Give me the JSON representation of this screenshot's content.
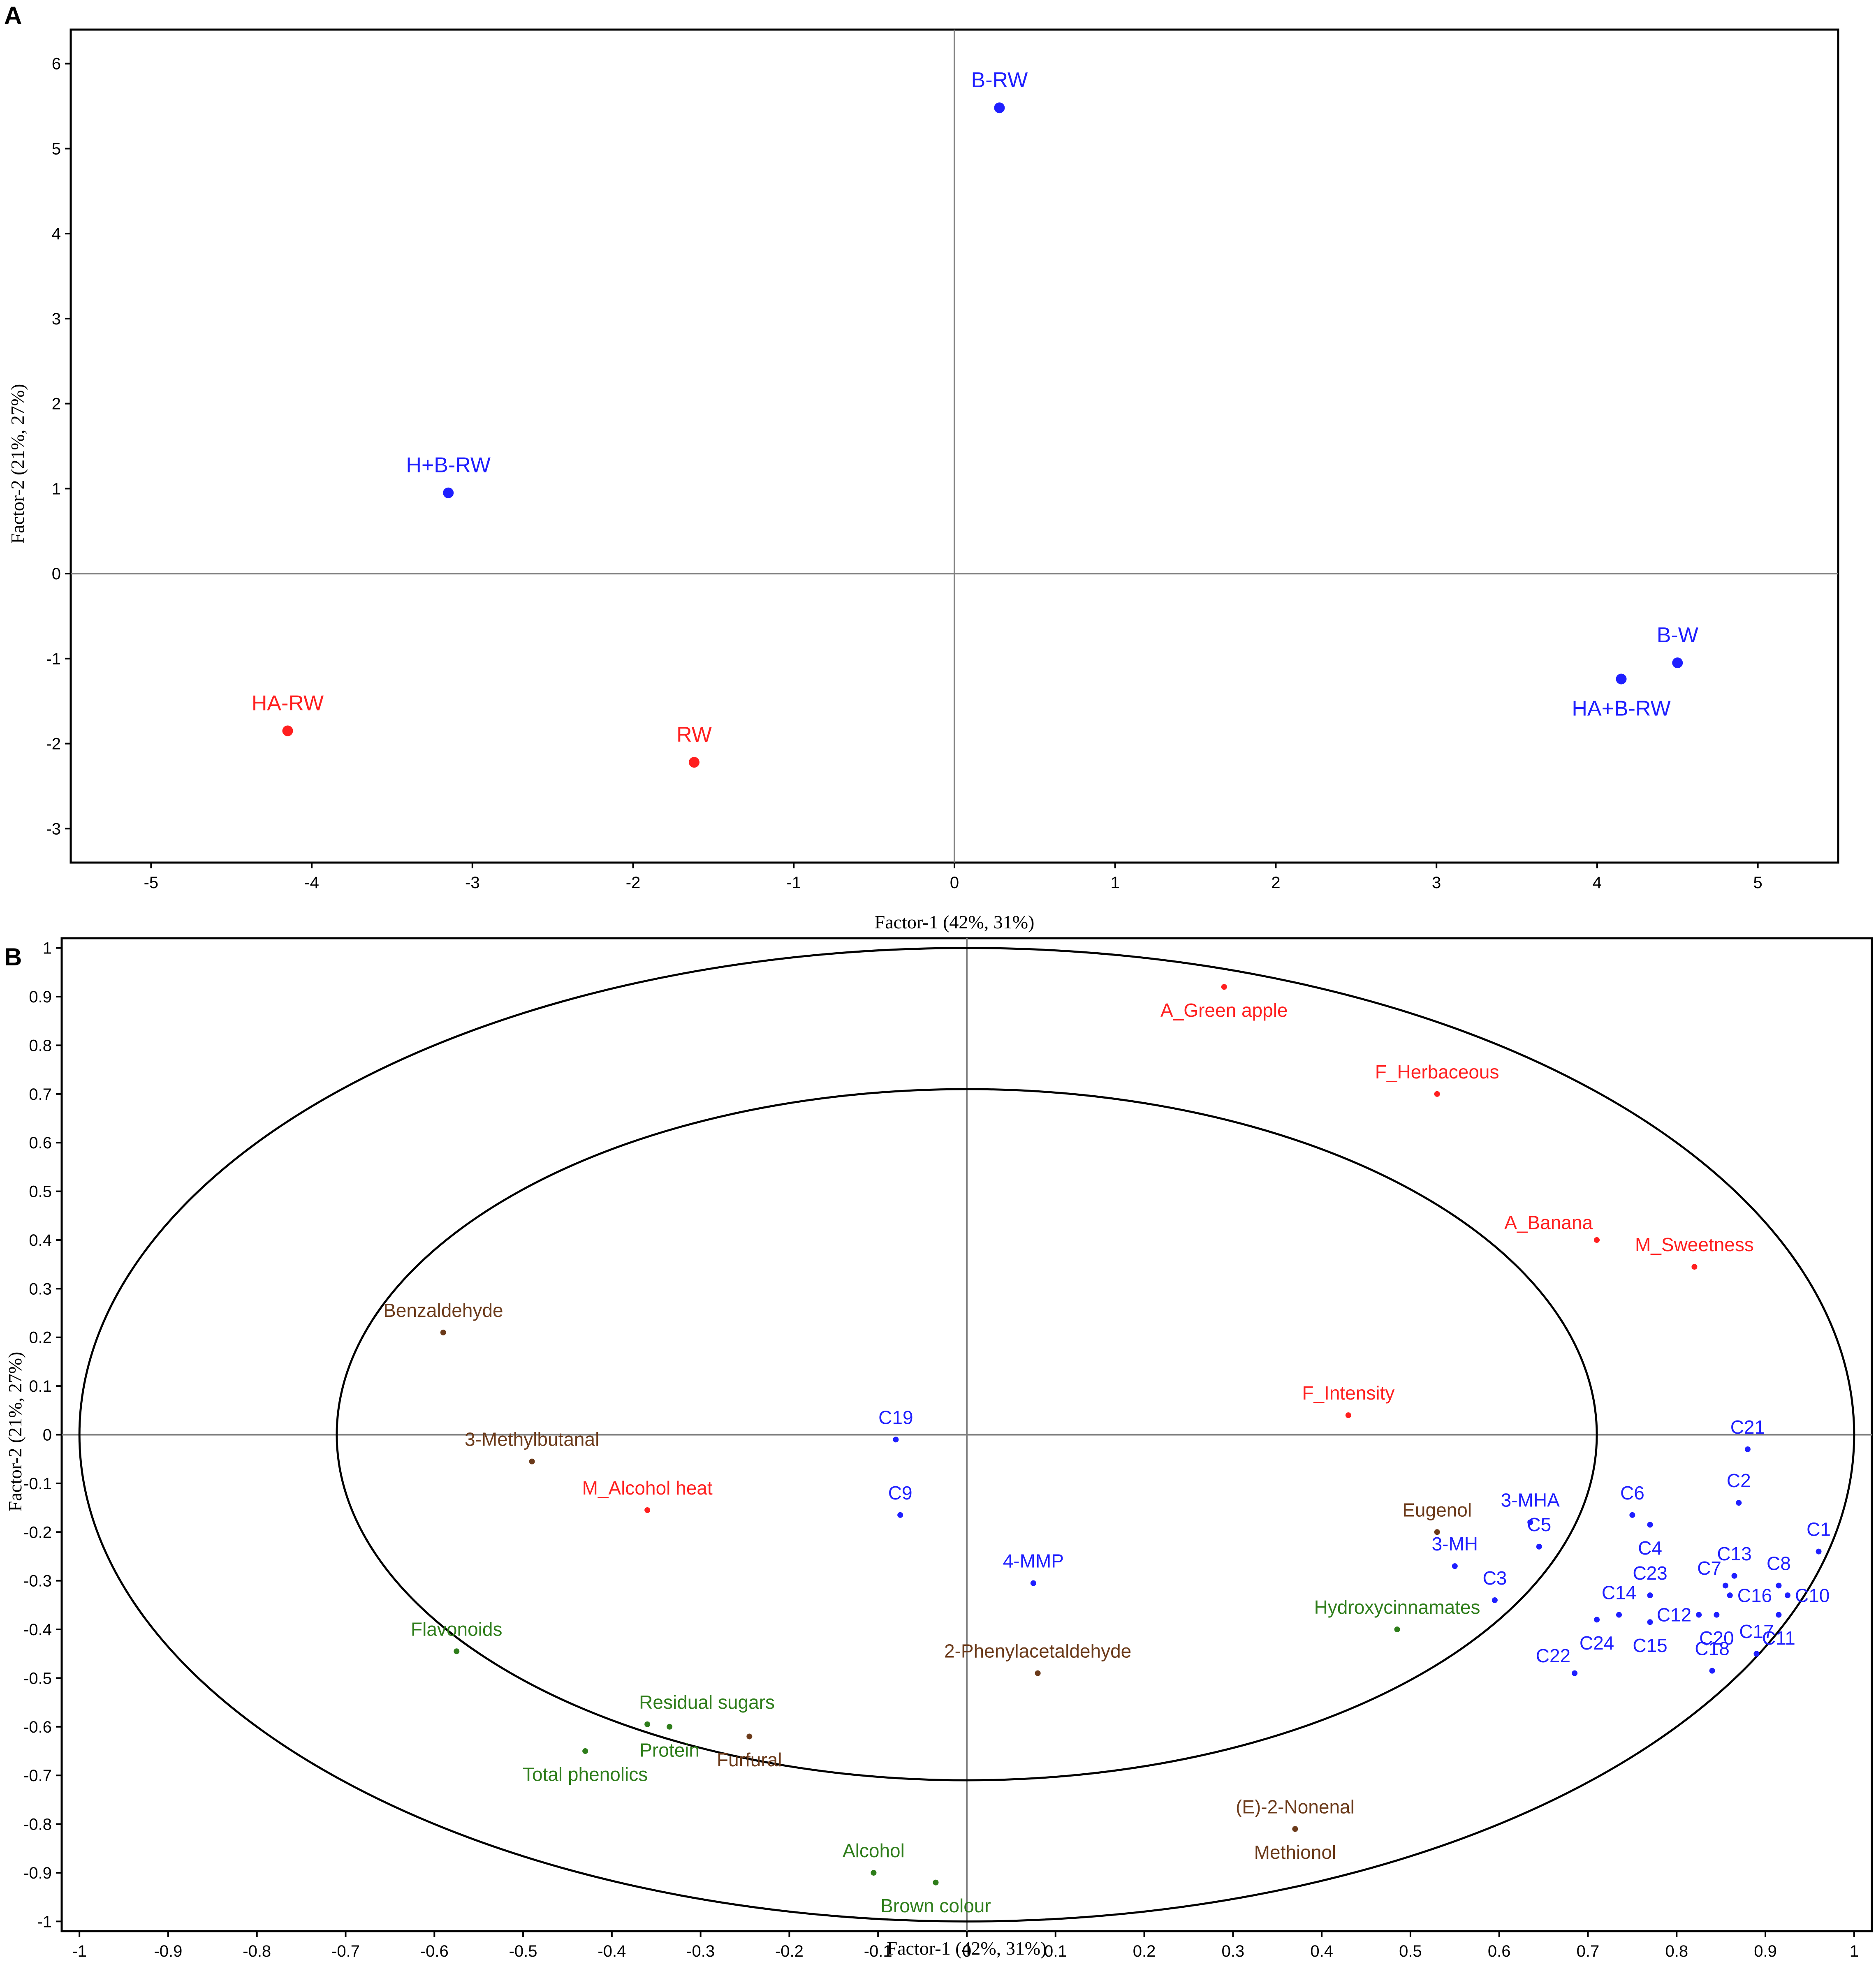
{
  "colors": {
    "blue": "#1f1fff",
    "red": "#ff1f1f",
    "brown": "#6b3a1a",
    "green": "#2e7d1a"
  },
  "chart_data": [
    {
      "panel": "A",
      "type": "scatter",
      "title": "",
      "xlabel": "Factor-1 (42%, 31%)",
      "ylabel": "Factor-2 (21%, 27%)",
      "xlim": [
        -5.5,
        5.5
      ],
      "ylim": [
        -3.4,
        6.4
      ],
      "xticks": [
        -5,
        -4,
        -3,
        -2,
        -1,
        0,
        1,
        2,
        3,
        4,
        5
      ],
      "yticks": [
        -3,
        -2,
        -1,
        0,
        1,
        2,
        3,
        4,
        5,
        6
      ],
      "points": [
        {
          "label": "B-RW",
          "x": 0.28,
          "y": 5.48,
          "color": "blue",
          "label_pos": "above"
        },
        {
          "label": "H+B-RW",
          "x": -3.15,
          "y": 0.95,
          "color": "blue",
          "label_pos": "above"
        },
        {
          "label": "B-W",
          "x": 4.5,
          "y": -1.05,
          "color": "blue",
          "label_pos": "above"
        },
        {
          "label": "HA+B-RW",
          "x": 4.15,
          "y": -1.24,
          "color": "blue",
          "label_pos": "below"
        },
        {
          "label": "HA-RW",
          "x": -4.15,
          "y": -1.85,
          "color": "red",
          "label_pos": "above"
        },
        {
          "label": "RW",
          "x": -1.62,
          "y": -2.22,
          "color": "red",
          "label_pos": "above"
        }
      ]
    },
    {
      "panel": "B",
      "type": "scatter",
      "title": "",
      "xlabel": "Factor-1 (42%, 31%)",
      "ylabel": "Factor-2 (21%, 27%)",
      "xlim": [
        -1.02,
        1.02
      ],
      "ylim": [
        -1.02,
        1.02
      ],
      "xticks": [
        "-1",
        "-0.9",
        "-0.8",
        "-0.7",
        "-0.6",
        "-0.5",
        "-0.4",
        "-0.3",
        "-0.2",
        "-0.1",
        "0",
        "0.1",
        "0.2",
        "0.3",
        "0.4",
        "0.5",
        "0.6",
        "0.7",
        "0.8",
        "0.9",
        "1"
      ],
      "yticks": [
        "-1",
        "-0.9",
        "-0.8",
        "-0.7",
        "-0.6",
        "-0.5",
        "-0.4",
        "-0.3",
        "-0.2",
        "-0.1",
        "0",
        "0.1",
        "0.2",
        "0.3",
        "0.4",
        "0.5",
        "0.6",
        "0.7",
        "0.8",
        "0.9",
        "1"
      ],
      "circles": [
        1.0,
        0.71
      ],
      "points": [
        {
          "label": "A_Green apple",
          "x": 0.29,
          "y": 0.92,
          "color": "red",
          "label_pos": "below"
        },
        {
          "label": "F_Herbaceous",
          "x": 0.53,
          "y": 0.7,
          "color": "red",
          "label_pos": "above"
        },
        {
          "label": "A_Banana",
          "x": 0.71,
          "y": 0.4,
          "color": "red",
          "label_pos": "above-left"
        },
        {
          "label": "M_Sweetness",
          "x": 0.82,
          "y": 0.345,
          "color": "red",
          "label_pos": "above"
        },
        {
          "label": "F_Intensity",
          "x": 0.43,
          "y": 0.04,
          "color": "red",
          "label_pos": "above"
        },
        {
          "label": "M_Alcohol heat",
          "x": -0.36,
          "y": -0.155,
          "color": "red",
          "label_pos": "above"
        },
        {
          "label": "Benzaldehyde",
          "x": -0.59,
          "y": 0.21,
          "color": "brown",
          "label_pos": "above"
        },
        {
          "label": "3-Methylbutanal",
          "x": -0.49,
          "y": -0.055,
          "color": "brown",
          "label_pos": "above"
        },
        {
          "label": "Eugenol",
          "x": 0.53,
          "y": -0.2,
          "color": "brown",
          "label_pos": "above"
        },
        {
          "label": "2-Phenylacetaldehyde",
          "x": 0.08,
          "y": -0.49,
          "color": "brown",
          "label_pos": "above"
        },
        {
          "label": "Furfural",
          "x": -0.245,
          "y": -0.62,
          "color": "brown",
          "label_pos": "below"
        },
        {
          "label": "(E)-2-Nonenal",
          "x": 0.37,
          "y": -0.81,
          "color": "brown",
          "label_pos": "above"
        },
        {
          "label": "Methionol",
          "x": 0.37,
          "y": -0.81,
          "color": "brown",
          "label_pos": "below"
        },
        {
          "label": "Hydroxycinnamates",
          "x": 0.485,
          "y": -0.4,
          "color": "green",
          "label_pos": "above"
        },
        {
          "label": "Flavonoids",
          "x": -0.575,
          "y": -0.445,
          "color": "green",
          "label_pos": "above"
        },
        {
          "label": "Residual sugars",
          "x": -0.36,
          "y": -0.595,
          "color": "green",
          "label_pos": "above-right"
        },
        {
          "label": "Protein",
          "x": -0.335,
          "y": -0.6,
          "color": "green",
          "label_pos": "below"
        },
        {
          "label": "Total phenolics",
          "x": -0.43,
          "y": -0.65,
          "color": "green",
          "label_pos": "below"
        },
        {
          "label": "Alcohol",
          "x": -0.105,
          "y": -0.9,
          "color": "green",
          "label_pos": "above"
        },
        {
          "label": "Brown colour",
          "x": -0.035,
          "y": -0.92,
          "color": "green",
          "label_pos": "below"
        },
        {
          "label": "C19",
          "x": -0.08,
          "y": -0.01,
          "color": "blue",
          "label_pos": "above"
        },
        {
          "label": "C9",
          "x": -0.075,
          "y": -0.165,
          "color": "blue",
          "label_pos": "above"
        },
        {
          "label": "4-MMP",
          "x": 0.075,
          "y": -0.305,
          "color": "blue",
          "label_pos": "above"
        },
        {
          "label": "3-MHA",
          "x": 0.635,
          "y": -0.18,
          "color": "blue",
          "label_pos": "above"
        },
        {
          "label": "C5",
          "x": 0.645,
          "y": -0.23,
          "color": "blue",
          "label_pos": "above"
        },
        {
          "label": "3-MH",
          "x": 0.55,
          "y": -0.27,
          "color": "blue",
          "label_pos": "above"
        },
        {
          "label": "C3",
          "x": 0.595,
          "y": -0.34,
          "color": "blue",
          "label_pos": "above"
        },
        {
          "label": "C6",
          "x": 0.75,
          "y": -0.165,
          "color": "blue",
          "label_pos": "above"
        },
        {
          "label": "C4",
          "x": 0.77,
          "y": -0.185,
          "color": "blue",
          "label_pos": "below"
        },
        {
          "label": "C21",
          "x": 0.88,
          "y": -0.03,
          "color": "blue",
          "label_pos": "above"
        },
        {
          "label": "C2",
          "x": 0.87,
          "y": -0.14,
          "color": "blue",
          "label_pos": "above"
        },
        {
          "label": "C1",
          "x": 0.96,
          "y": -0.24,
          "color": "blue",
          "label_pos": "above"
        },
        {
          "label": "C13",
          "x": 0.865,
          "y": -0.29,
          "color": "blue",
          "label_pos": "above"
        },
        {
          "label": "C8",
          "x": 0.915,
          "y": -0.31,
          "color": "blue",
          "label_pos": "above"
        },
        {
          "label": "C7",
          "x": 0.855,
          "y": -0.31,
          "color": "blue",
          "label_pos": "above-left"
        },
        {
          "label": "C16",
          "x": 0.86,
          "y": -0.33,
          "color": "blue",
          "label_pos": "right"
        },
        {
          "label": "C10",
          "x": 0.925,
          "y": -0.33,
          "color": "blue",
          "label_pos": "right"
        },
        {
          "label": "C23",
          "x": 0.77,
          "y": -0.33,
          "color": "blue",
          "label_pos": "above"
        },
        {
          "label": "C12",
          "x": 0.825,
          "y": -0.37,
          "color": "blue",
          "label_pos": "left"
        },
        {
          "label": "C20",
          "x": 0.845,
          "y": -0.37,
          "color": "blue",
          "label_pos": "below"
        },
        {
          "label": "C11",
          "x": 0.915,
          "y": -0.37,
          "color": "blue",
          "label_pos": "below"
        },
        {
          "label": "C14",
          "x": 0.735,
          "y": -0.37,
          "color": "blue",
          "label_pos": "above"
        },
        {
          "label": "C24",
          "x": 0.71,
          "y": -0.38,
          "color": "blue",
          "label_pos": "below"
        },
        {
          "label": "C15",
          "x": 0.77,
          "y": -0.385,
          "color": "blue",
          "label_pos": "below"
        },
        {
          "label": "C17",
          "x": 0.89,
          "y": -0.45,
          "color": "blue",
          "label_pos": "above"
        },
        {
          "label": "C22",
          "x": 0.685,
          "y": -0.49,
          "color": "blue",
          "label_pos": "above-left"
        },
        {
          "label": "C18",
          "x": 0.84,
          "y": -0.485,
          "color": "blue",
          "label_pos": "above"
        }
      ]
    }
  ]
}
